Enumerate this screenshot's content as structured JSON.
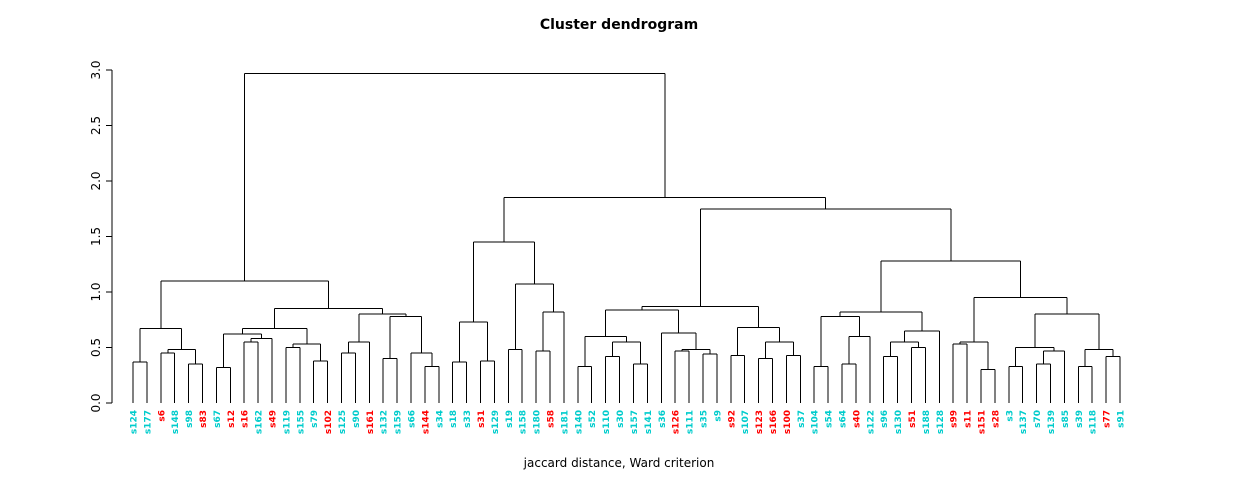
{
  "chart_data": {
    "type": "dendrogram",
    "title": "Cluster dendrogram",
    "xlabel": "jaccard distance, Ward criterion",
    "ylabel": "",
    "ylim": [
      0.0,
      3.0
    ],
    "yticks": [
      "0.0",
      "0.5",
      "1.0",
      "1.5",
      "2.0",
      "2.5",
      "3.0"
    ],
    "grid": false,
    "line_color": "#000000",
    "leaf_colors": {
      "cyan": "#00CCCC",
      "red": "#FF0000"
    },
    "leaves": [
      {
        "label": "s124",
        "group": "cyan"
      },
      {
        "label": "s177",
        "group": "cyan"
      },
      {
        "label": "s6",
        "group": "red"
      },
      {
        "label": "s148",
        "group": "cyan"
      },
      {
        "label": "s98",
        "group": "cyan"
      },
      {
        "label": "s83",
        "group": "red"
      },
      {
        "label": "s67",
        "group": "cyan"
      },
      {
        "label": "s12",
        "group": "red"
      },
      {
        "label": "s16",
        "group": "red"
      },
      {
        "label": "s162",
        "group": "cyan"
      },
      {
        "label": "s49",
        "group": "red"
      },
      {
        "label": "s119",
        "group": "cyan"
      },
      {
        "label": "s155",
        "group": "cyan"
      },
      {
        "label": "s79",
        "group": "cyan"
      },
      {
        "label": "s102",
        "group": "red"
      },
      {
        "label": "s125",
        "group": "cyan"
      },
      {
        "label": "s90",
        "group": "cyan"
      },
      {
        "label": "s161",
        "group": "red"
      },
      {
        "label": "s132",
        "group": "cyan"
      },
      {
        "label": "s159",
        "group": "cyan"
      },
      {
        "label": "s66",
        "group": "cyan"
      },
      {
        "label": "s144",
        "group": "red"
      },
      {
        "label": "s34",
        "group": "cyan"
      },
      {
        "label": "s18",
        "group": "cyan"
      },
      {
        "label": "s33",
        "group": "cyan"
      },
      {
        "label": "s31",
        "group": "red"
      },
      {
        "label": "s129",
        "group": "cyan"
      },
      {
        "label": "s19",
        "group": "cyan"
      },
      {
        "label": "s158",
        "group": "cyan"
      },
      {
        "label": "s180",
        "group": "cyan"
      },
      {
        "label": "s58",
        "group": "red"
      },
      {
        "label": "s181",
        "group": "cyan"
      },
      {
        "label": "s140",
        "group": "cyan"
      },
      {
        "label": "s52",
        "group": "cyan"
      },
      {
        "label": "s110",
        "group": "cyan"
      },
      {
        "label": "s30",
        "group": "cyan"
      },
      {
        "label": "s157",
        "group": "cyan"
      },
      {
        "label": "s141",
        "group": "cyan"
      },
      {
        "label": "s36",
        "group": "cyan"
      },
      {
        "label": "s126",
        "group": "red"
      },
      {
        "label": "s111",
        "group": "cyan"
      },
      {
        "label": "s35",
        "group": "cyan"
      },
      {
        "label": "s9",
        "group": "cyan"
      },
      {
        "label": "s92",
        "group": "red"
      },
      {
        "label": "s107",
        "group": "cyan"
      },
      {
        "label": "s123",
        "group": "red"
      },
      {
        "label": "s166",
        "group": "red"
      },
      {
        "label": "s100",
        "group": "red"
      },
      {
        "label": "s37",
        "group": "cyan"
      },
      {
        "label": "s104",
        "group": "cyan"
      },
      {
        "label": "s54",
        "group": "cyan"
      },
      {
        "label": "s64",
        "group": "cyan"
      },
      {
        "label": "s40",
        "group": "red"
      },
      {
        "label": "s122",
        "group": "cyan"
      },
      {
        "label": "s96",
        "group": "cyan"
      },
      {
        "label": "s130",
        "group": "cyan"
      },
      {
        "label": "s51",
        "group": "red"
      },
      {
        "label": "s188",
        "group": "cyan"
      },
      {
        "label": "s128",
        "group": "cyan"
      },
      {
        "label": "s99",
        "group": "red"
      },
      {
        "label": "s11",
        "group": "red"
      },
      {
        "label": "s151",
        "group": "red"
      },
      {
        "label": "s28",
        "group": "red"
      },
      {
        "label": "s3",
        "group": "cyan"
      },
      {
        "label": "s137",
        "group": "cyan"
      },
      {
        "label": "s70",
        "group": "cyan"
      },
      {
        "label": "s139",
        "group": "cyan"
      },
      {
        "label": "s85",
        "group": "cyan"
      },
      {
        "label": "s39",
        "group": "cyan"
      },
      {
        "label": "s118",
        "group": "cyan"
      },
      {
        "label": "s77",
        "group": "red"
      },
      {
        "label": "s91",
        "group": "cyan"
      }
    ],
    "tree": {
      "h": 2.97,
      "c": [
        {
          "h": 1.1,
          "c": [
            {
              "h": 0.67,
              "c": [
                {
                  "h": 0.37,
                  "c": [
                    0,
                    1
                  ]
                },
                {
                  "h": 0.48,
                  "c": [
                    {
                      "h": 0.45,
                      "c": [
                        2,
                        3
                      ]
                    },
                    {
                      "h": 0.35,
                      "c": [
                        4,
                        5
                      ]
                    }
                  ]
                }
              ]
            },
            {
              "h": 0.85,
              "c": [
                {
                  "h": 0.67,
                  "c": [
                    {
                      "h": 0.62,
                      "c": [
                        {
                          "h": 0.32,
                          "c": [
                            6,
                            7
                          ]
                        },
                        {
                          "h": 0.58,
                          "c": [
                            {
                              "h": 0.55,
                              "c": [
                                8,
                                9
                              ]
                            },
                            10
                          ]
                        }
                      ]
                    },
                    {
                      "h": 0.53,
                      "c": [
                        {
                          "h": 0.5,
                          "c": [
                            11,
                            12
                          ]
                        },
                        {
                          "h": 0.38,
                          "c": [
                            13,
                            14
                          ]
                        }
                      ]
                    }
                  ]
                },
                {
                  "h": 0.8,
                  "c": [
                    {
                      "h": 0.55,
                      "c": [
                        {
                          "h": 0.45,
                          "c": [
                            15,
                            16
                          ]
                        },
                        17
                      ]
                    },
                    {
                      "h": 0.78,
                      "c": [
                        {
                          "h": 0.4,
                          "c": [
                            18,
                            19
                          ]
                        },
                        {
                          "h": 0.45,
                          "c": [
                            20,
                            {
                              "h": 0.33,
                              "c": [
                                21,
                                22
                              ]
                            }
                          ]
                        }
                      ]
                    }
                  ]
                }
              ]
            }
          ]
        },
        {
          "h": 1.85,
          "c": [
            {
              "h": 1.45,
              "c": [
                {
                  "h": 0.73,
                  "c": [
                    {
                      "h": 0.37,
                      "c": [
                        23,
                        24
                      ]
                    },
                    {
                      "h": 0.38,
                      "c": [
                        25,
                        26
                      ]
                    }
                  ]
                },
                {
                  "h": 1.07,
                  "c": [
                    {
                      "h": 0.48,
                      "c": [
                        27,
                        28
                      ]
                    },
                    {
                      "h": 0.82,
                      "c": [
                        {
                          "h": 0.47,
                          "c": [
                            29,
                            30
                          ]
                        },
                        31
                      ]
                    }
                  ]
                }
              ]
            },
            {
              "h": 1.75,
              "c": [
                {
                  "h": 0.87,
                  "c": [
                    {
                      "h": 0.84,
                      "c": [
                        {
                          "h": 0.6,
                          "c": [
                            {
                              "h": 0.33,
                              "c": [
                                32,
                                33
                              ]
                            },
                            {
                              "h": 0.55,
                              "c": [
                                {
                                  "h": 0.42,
                                  "c": [
                                    34,
                                    35
                                  ]
                                },
                                {
                                  "h": 0.35,
                                  "c": [
                                    36,
                                    37
                                  ]
                                }
                              ]
                            }
                          ]
                        },
                        {
                          "h": 0.63,
                          "c": [
                            38,
                            {
                              "h": 0.48,
                              "c": [
                                {
                                  "h": 0.47,
                                  "c": [
                                    39,
                                    40
                                  ]
                                },
                                {
                                  "h": 0.44,
                                  "c": [
                                    41,
                                    42
                                  ]
                                }
                              ]
                            }
                          ]
                        }
                      ]
                    },
                    {
                      "h": 0.68,
                      "c": [
                        {
                          "h": 0.43,
                          "c": [
                            43,
                            44
                          ]
                        },
                        {
                          "h": 0.55,
                          "c": [
                            {
                              "h": 0.4,
                              "c": [
                                45,
                                46
                              ]
                            },
                            {
                              "h": 0.43,
                              "c": [
                                47,
                                48
                              ]
                            }
                          ]
                        }
                      ]
                    }
                  ]
                },
                {
                  "h": 1.28,
                  "c": [
                    {
                      "h": 0.82,
                      "c": [
                        {
                          "h": 0.78,
                          "c": [
                            {
                              "h": 0.33,
                              "c": [
                                49,
                                50
                              ]
                            },
                            {
                              "h": 0.6,
                              "c": [
                                {
                                  "h": 0.35,
                                  "c": [
                                    51,
                                    52
                                  ]
                                },
                                53
                              ]
                            }
                          ]
                        },
                        {
                          "h": 0.65,
                          "c": [
                            {
                              "h": 0.55,
                              "c": [
                                {
                                  "h": 0.42,
                                  "c": [
                                    54,
                                    55
                                  ]
                                },
                                {
                                  "h": 0.5,
                                  "c": [
                                    56,
                                    57
                                  ]
                                }
                              ]
                            },
                            58
                          ]
                        }
                      ]
                    },
                    {
                      "h": 0.95,
                      "c": [
                        {
                          "h": 0.55,
                          "c": [
                            {
                              "h": 0.53,
                              "c": [
                                59,
                                60
                              ]
                            },
                            {
                              "h": 0.3,
                              "c": [
                                61,
                                62
                              ]
                            }
                          ]
                        },
                        {
                          "h": 0.8,
                          "c": [
                            {
                              "h": 0.5,
                              "c": [
                                {
                                  "h": 0.33,
                                  "c": [
                                    63,
                                    64
                                  ]
                                },
                                {
                                  "h": 0.47,
                                  "c": [
                                    {
                                      "h": 0.35,
                                      "c": [
                                        65,
                                        66
                                      ]
                                    },
                                    67
                                  ]
                                }
                              ]
                            },
                            {
                              "h": 0.48,
                              "c": [
                                {
                                  "h": 0.33,
                                  "c": [
                                    68,
                                    69
                                  ]
                                },
                                {
                                  "h": 0.42,
                                  "c": [
                                    70,
                                    71
                                  ]
                                }
                              ]
                            }
                          ]
                        }
                      ]
                    }
                  ]
                }
              ]
            }
          ]
        }
      ]
    }
  }
}
